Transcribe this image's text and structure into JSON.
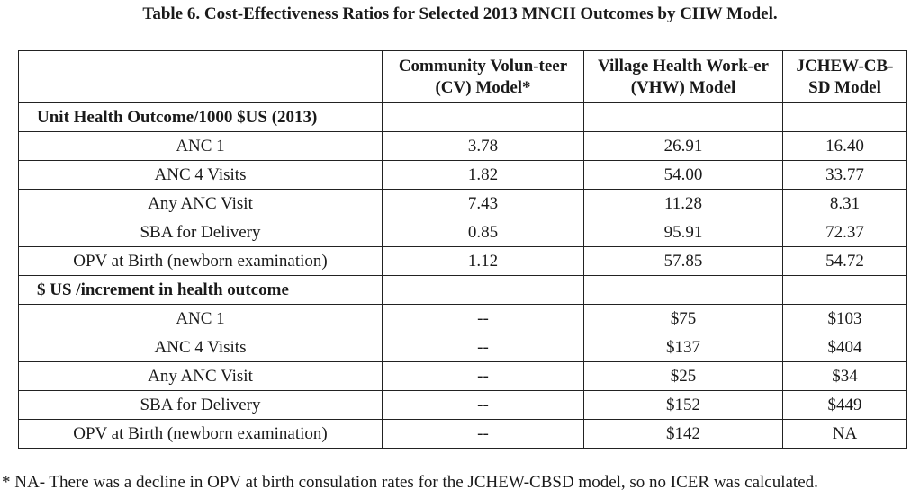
{
  "title": "Table 6. Cost-Effectiveness Ratios for Selected 2013 MNCH Outcomes by CHW Model.",
  "columns": [
    "",
    "Community Volun-teer (CV) Model*",
    "Village Health Work-er (VHW) Model",
    "JCHEW-CB-SD Model"
  ],
  "sections": [
    {
      "label": "Unit Health Outcome/1000 $US (2013)",
      "rows": [
        {
          "outcome": "ANC 1",
          "cv": "3.78",
          "vhw": "26.91",
          "jchew": "16.40"
        },
        {
          "outcome": "ANC 4 Visits",
          "cv": "1.82",
          "vhw": "54.00",
          "jchew": "33.77"
        },
        {
          "outcome": "Any ANC Visit",
          "cv": "7.43",
          "vhw": "11.28",
          "jchew": "8.31"
        },
        {
          "outcome": "SBA for Delivery",
          "cv": "0.85",
          "vhw": "95.91",
          "jchew": "72.37"
        },
        {
          "outcome": "OPV at Birth (newborn examination)",
          "cv": "1.12",
          "vhw": "57.85",
          "jchew": "54.72"
        }
      ]
    },
    {
      "label": "$ US /increment in health outcome",
      "rows": [
        {
          "outcome": "ANC 1",
          "cv": "--",
          "vhw": "$75",
          "jchew": "$103"
        },
        {
          "outcome": "ANC 4 Visits",
          "cv": "--",
          "vhw": "$137",
          "jchew": "$404"
        },
        {
          "outcome": "Any ANC Visit",
          "cv": "--",
          "vhw": "$25",
          "jchew": "$34"
        },
        {
          "outcome": "SBA for Delivery",
          "cv": "--",
          "vhw": "$152",
          "jchew": "$449"
        },
        {
          "outcome": "OPV at Birth (newborn examination)",
          "cv": "--",
          "vhw": "$142",
          "jchew": "NA"
        }
      ]
    }
  ],
  "footnote": "* NA- There was a decline in OPV at birth consulation rates for the JCHEW-CBSD model, so no ICER was calculated."
}
